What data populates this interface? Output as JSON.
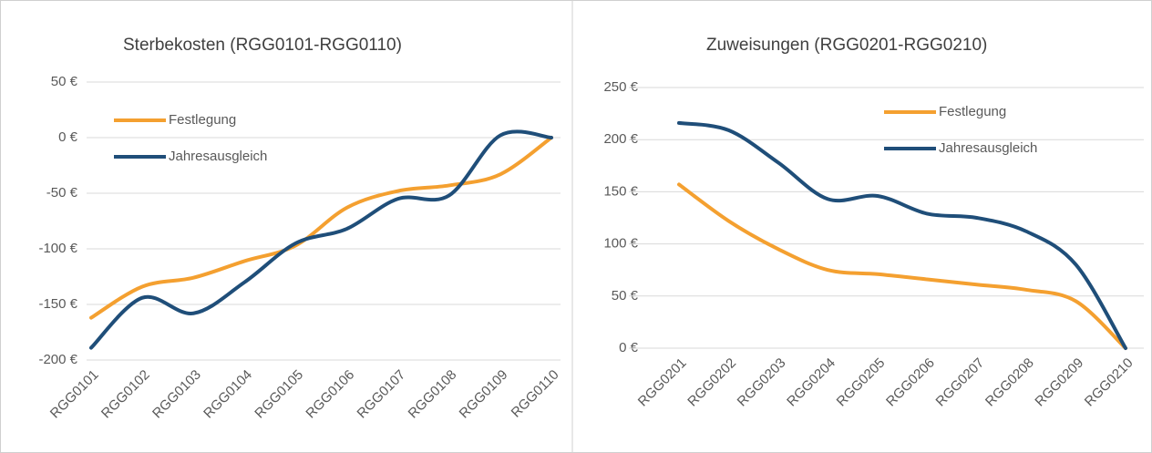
{
  "chart_data": [
    {
      "type": "line",
      "title": "Sterbekosten (RGG0101-RGG0110)",
      "categories": [
        "RGG0101",
        "RGG0102",
        "RGG0103",
        "RGG0104",
        "RGG0105",
        "RGG0106",
        "RGG0107",
        "RGG0108",
        "RGG0109",
        "RGG0110"
      ],
      "series": [
        {
          "name": "Festlegung",
          "color": "#f4a030",
          "values": [
            -162,
            -134,
            -126,
            -111,
            -97,
            -63,
            -48,
            -43,
            -33,
            0
          ]
        },
        {
          "name": "Jahresausgleich",
          "color": "#1f4e79",
          "values": [
            -189,
            -144,
            -158,
            -130,
            -95,
            -82,
            -55,
            -52,
            2,
            0
          ]
        }
      ],
      "ylim": [
        -200,
        50
      ],
      "yticks": [
        {
          "value": -200,
          "label": "-200 €"
        },
        {
          "value": -150,
          "label": "-150 €"
        },
        {
          "value": -100,
          "label": "-100 €"
        },
        {
          "value": -50,
          "label": "-50 €"
        },
        {
          "value": 0,
          "label": "0 €"
        },
        {
          "value": 50,
          "label": "50 €"
        }
      ],
      "grid": true,
      "legend": "upper left"
    },
    {
      "type": "line",
      "title": "Zuweisungen (RGG0201-RGG0210)",
      "categories": [
        "RGG0201",
        "RGG0202",
        "RGG0203",
        "RGG0204",
        "RGG0205",
        "RGG0206",
        "RGG0207",
        "RGG0208",
        "RGG0209",
        "RGG0210"
      ],
      "series": [
        {
          "name": "Festlegung",
          "color": "#f4a030",
          "values": [
            157,
            122,
            95,
            75,
            71,
            66,
            61,
            56,
            45,
            0
          ]
        },
        {
          "name": "Jahresausgleich",
          "color": "#1f4e79",
          "values": [
            216,
            209,
            178,
            143,
            146,
            129,
            125,
            112,
            80,
            0
          ]
        }
      ],
      "ylim": [
        0,
        250
      ],
      "yticks": [
        {
          "value": 0,
          "label": "0 €"
        },
        {
          "value": 50,
          "label": "50 €"
        },
        {
          "value": 100,
          "label": "100 €"
        },
        {
          "value": 150,
          "label": "150 €"
        },
        {
          "value": 200,
          "label": "200 €"
        },
        {
          "value": 250,
          "label": "250 €"
        }
      ],
      "grid": true,
      "legend": "upper right"
    }
  ]
}
